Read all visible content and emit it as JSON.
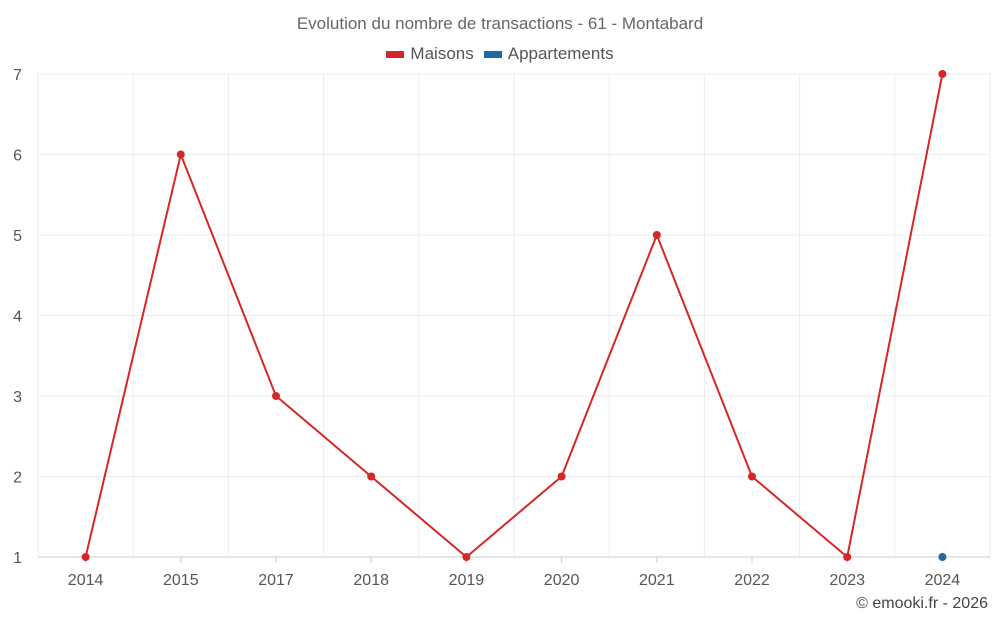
{
  "chart_data": {
    "type": "line",
    "title": "Evolution du nombre de transactions - 61 - Montabard",
    "categories": [
      "2014",
      "2015",
      "2017",
      "2018",
      "2019",
      "2020",
      "2021",
      "2022",
      "2023",
      "2024"
    ],
    "series": [
      {
        "name": "Maisons",
        "color": "#d62728",
        "values": [
          1,
          6,
          3,
          2,
          1,
          2,
          5,
          2,
          1,
          7
        ]
      },
      {
        "name": "Appartements",
        "color": "#1f6aa5",
        "values": [
          null,
          null,
          null,
          null,
          null,
          null,
          null,
          null,
          null,
          1
        ]
      }
    ],
    "ylim": [
      1,
      7
    ],
    "yticks": [
      1,
      2,
      3,
      4,
      5,
      6,
      7
    ],
    "xlabel": "",
    "ylabel": "",
    "grid": true,
    "legend_position": "top-center"
  },
  "footer": {
    "credit": "© emooki.fr - 2026"
  }
}
